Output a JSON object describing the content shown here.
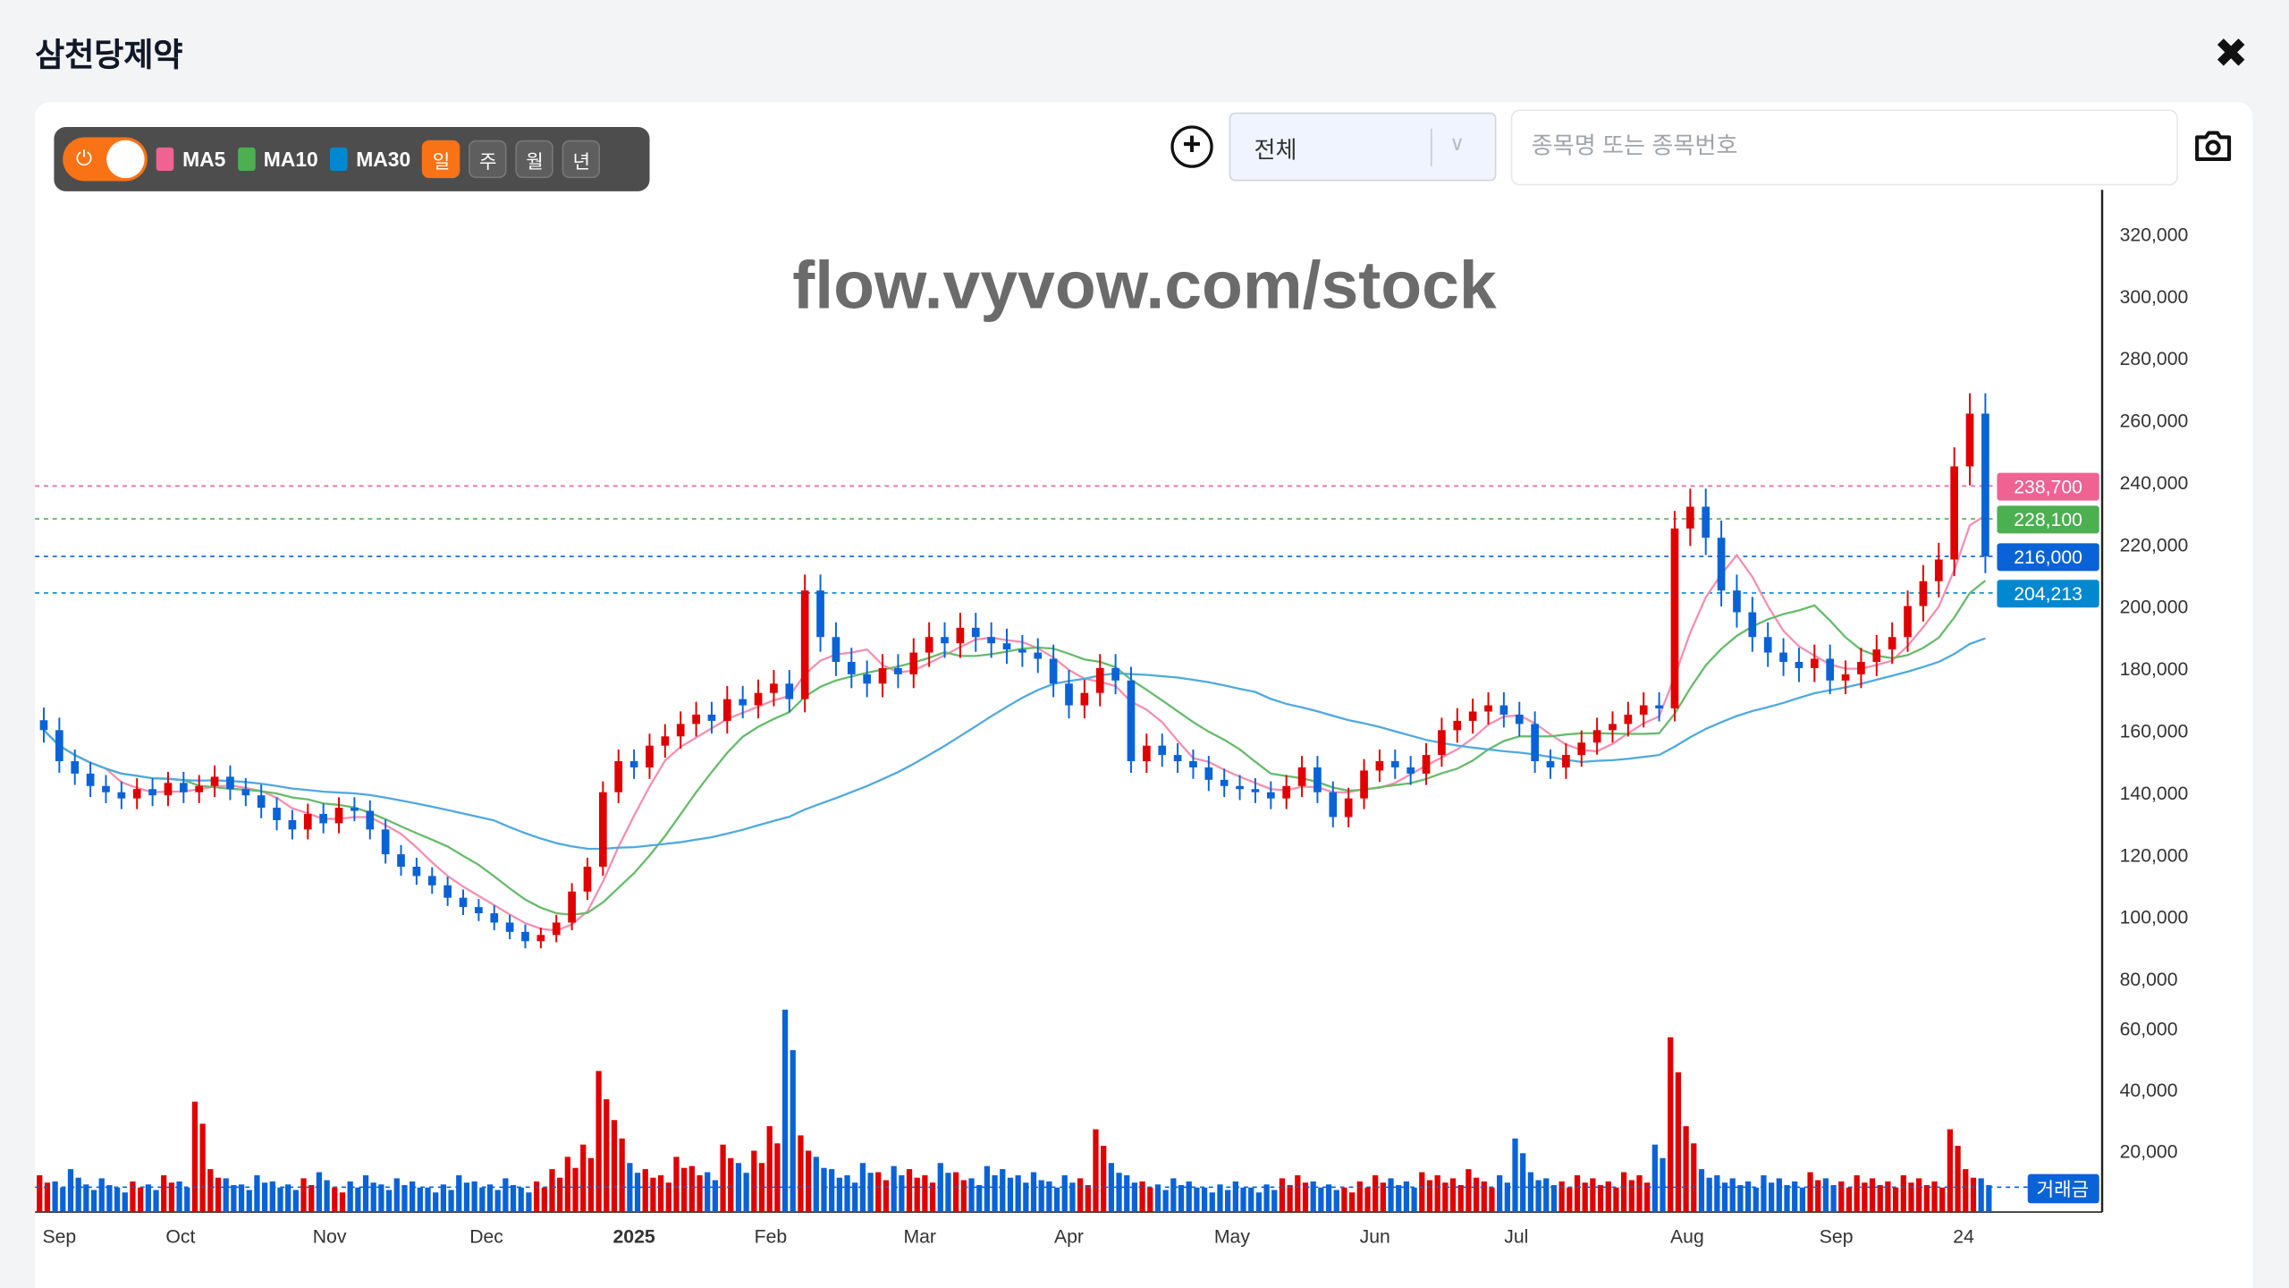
{
  "header": {
    "title": "삼천당제약",
    "close_icon": "close-icon"
  },
  "toolbar": {
    "toggle_on": true,
    "ma": [
      {
        "label": "MA5",
        "color": "#f06292"
      },
      {
        "label": "MA10",
        "color": "#4caf50"
      },
      {
        "label": "MA30",
        "color": "#0288d1"
      }
    ],
    "periods": [
      {
        "label": "일",
        "active": true
      },
      {
        "label": "주",
        "active": false
      },
      {
        "label": "월",
        "active": false
      },
      {
        "label": "년",
        "active": false
      }
    ]
  },
  "controls": {
    "add_icon": "plus-circle-icon",
    "market_select": "전체",
    "search_placeholder": "종목명 또는 종목번호",
    "search_value": "",
    "camera_icon": "camera-icon"
  },
  "watermark": "flow.vyvow.com/stock",
  "chart_data": {
    "type": "candlestick",
    "up_color": "#e00000",
    "down_color": "#0a63d6",
    "ylim": [
      80000,
      320000
    ],
    "y_ticks": [
      80000,
      100000,
      120000,
      140000,
      160000,
      180000,
      200000,
      220000,
      240000,
      260000,
      280000,
      300000,
      320000
    ],
    "volume_ylim": [
      0,
      66000
    ],
    "volume_ticks": [
      20000,
      40000,
      60000
    ],
    "volume_label": "거래금",
    "x_ticks": [
      {
        "label": "Sep",
        "index": 1
      },
      {
        "label": "Oct",
        "index": 8.8
      },
      {
        "label": "Nov",
        "index": 18.4
      },
      {
        "label": "Dec",
        "index": 28.5
      },
      {
        "label": "2025",
        "index": 38,
        "bold": true
      },
      {
        "label": "Feb",
        "index": 46.8
      },
      {
        "label": "Mar",
        "index": 56.4
      },
      {
        "label": "Apr",
        "index": 66
      },
      {
        "label": "May",
        "index": 76.5
      },
      {
        "label": "Jun",
        "index": 85.7
      },
      {
        "label": "Jul",
        "index": 94.8
      },
      {
        "label": "Aug",
        "index": 105.8
      },
      {
        "label": "Sep",
        "index": 115.4
      },
      {
        "label": "24",
        "index": 123.6
      }
    ],
    "closes": [
      160,
      150,
      146,
      142,
      140,
      138,
      141,
      139,
      143,
      140,
      142,
      145,
      141,
      139,
      135,
      131,
      128,
      133,
      130,
      135,
      134,
      128,
      120,
      116,
      113,
      110,
      106,
      103,
      101,
      98,
      95,
      92,
      94,
      98,
      108,
      116,
      140,
      150,
      148,
      155,
      158,
      162,
      165,
      163,
      170,
      168,
      172,
      175,
      170,
      205,
      190,
      182,
      178,
      175,
      180,
      178,
      185,
      190,
      188,
      193,
      190,
      188,
      186,
      185,
      183,
      175,
      168,
      172,
      180,
      176,
      150,
      155,
      152,
      150,
      148,
      144,
      142,
      141,
      140,
      138,
      142,
      148,
      140,
      132,
      138,
      147,
      150,
      148,
      146,
      152,
      160,
      163,
      166,
      168,
      165,
      162,
      150,
      148,
      152,
      156,
      160,
      162,
      165,
      168,
      167,
      225,
      232,
      222,
      205,
      198,
      190,
      185,
      182,
      180,
      183,
      176,
      178,
      182,
      186,
      190,
      200,
      208,
      215,
      245,
      262,
      216
    ],
    "volumes": [
      12,
      10,
      14,
      9,
      11,
      8,
      10,
      9,
      12,
      10,
      36,
      14,
      11,
      9,
      12,
      10,
      9,
      11,
      13,
      8,
      10,
      12,
      9,
      11,
      10,
      8,
      9,
      12,
      10,
      9,
      11,
      8,
      10,
      14,
      18,
      22,
      46,
      30,
      16,
      14,
      12,
      18,
      15,
      13,
      22,
      16,
      20,
      28,
      66,
      25,
      18,
      14,
      12,
      16,
      13,
      15,
      14,
      12,
      16,
      13,
      11,
      15,
      14,
      12,
      13,
      10,
      12,
      11,
      27,
      16,
      12,
      10,
      9,
      11,
      10,
      8,
      9,
      10,
      8,
      9,
      11,
      12,
      10,
      9,
      8,
      10,
      12,
      11,
      10,
      13,
      12,
      11,
      14,
      10,
      12,
      24,
      13,
      11,
      10,
      12,
      11,
      10,
      13,
      12,
      22,
      57,
      28,
      14,
      12,
      11,
      10,
      12,
      11,
      10,
      13,
      11,
      10,
      12,
      11,
      10,
      12,
      11,
      10,
      27,
      14,
      11
    ],
    "price_lines": [
      {
        "label": "238,700",
        "value": 238700,
        "color": "#f06292"
      },
      {
        "label": "228,100",
        "value": 228100,
        "color": "#4caf50"
      },
      {
        "label": "216,000",
        "value": 216000,
        "color": "#0a63d6"
      },
      {
        "label": "204,213",
        "value": 204213,
        "color": "#0288d1"
      }
    ]
  }
}
